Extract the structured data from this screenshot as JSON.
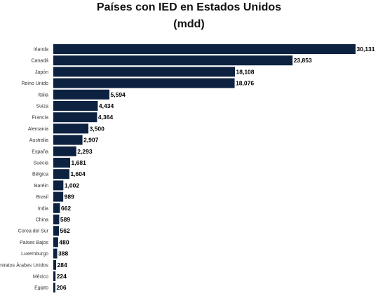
{
  "chart_data": {
    "type": "bar",
    "orientation": "horizontal",
    "title": "Países con IED en Estados Unidos",
    "subtitle": "(mdd)",
    "categories": [
      "Irlanda",
      "Canadá",
      "Japón",
      "Reino Unido",
      "Italia",
      "Suiza",
      "Francia",
      "Alemania",
      "Australia",
      "España",
      "Suecia",
      "Bélgica",
      "Baréin",
      "Brasil",
      "India",
      "China",
      "Corea del Sur",
      "Países Bajos",
      "Luxemburgo",
      "Emiratos Árabes Unidos",
      "México",
      "Egipto"
    ],
    "values": [
      30131,
      23853,
      18108,
      18076,
      5594,
      4434,
      4364,
      3500,
      2907,
      2293,
      1681,
      1604,
      1002,
      989,
      662,
      589,
      562,
      480,
      388,
      284,
      224,
      206
    ],
    "value_labels": [
      "30,131",
      "23,853",
      "18,108",
      "18,076",
      "5,594",
      "4,434",
      "4,364",
      "3,500",
      "2,907",
      "2,293",
      "1,681",
      "1,604",
      "1,002",
      "989",
      "662",
      "589",
      "562",
      "480",
      "388",
      "284",
      "224",
      "206"
    ],
    "bar_color": "#0d2240",
    "xlim": [
      0,
      30131
    ],
    "grid": false,
    "legend": "none"
  }
}
